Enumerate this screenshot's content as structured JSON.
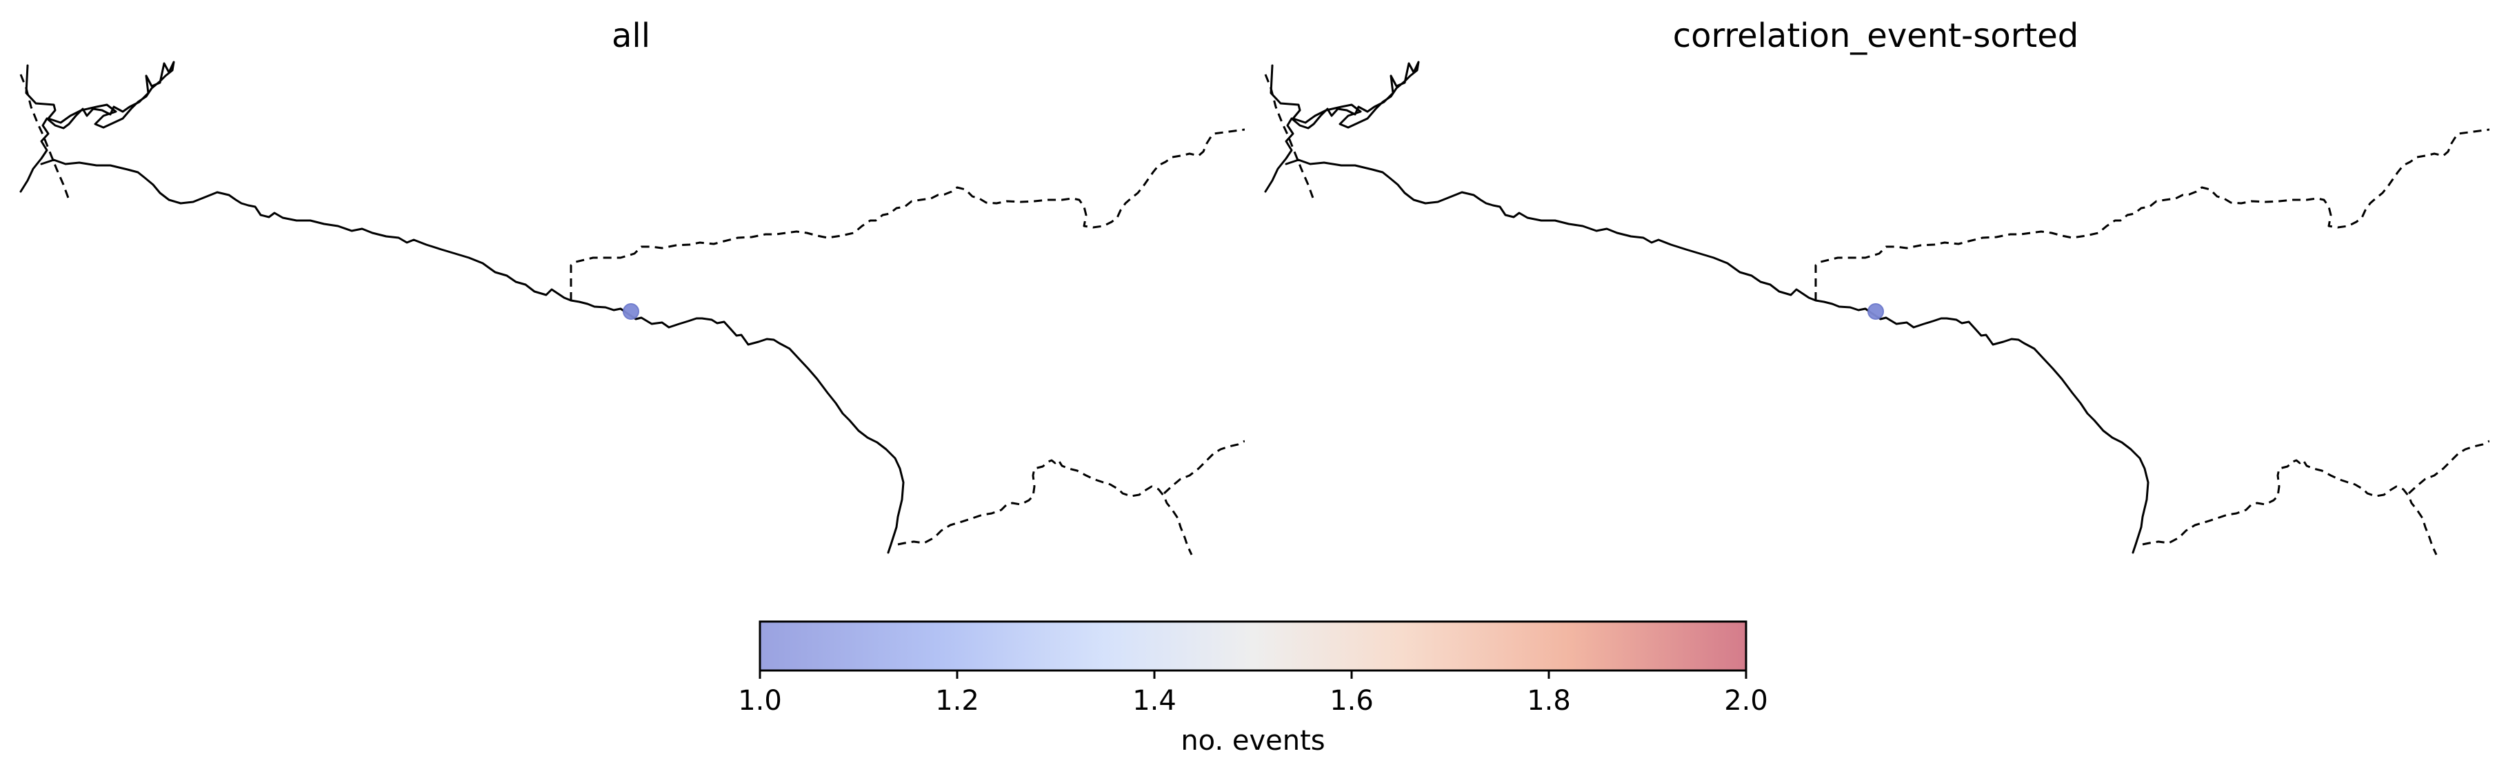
{
  "panels": [
    {
      "title": "all",
      "events": [
        {
          "count": 1.0
        }
      ]
    },
    {
      "title": "correlation_event-sorted",
      "events": [
        {
          "count": 1.0
        }
      ]
    }
  ],
  "colorbar": {
    "label": "no. events",
    "min": 1.0,
    "max": 2.0,
    "ticks": [
      "1.0",
      "1.2",
      "1.4",
      "1.6",
      "1.8",
      "2.0"
    ],
    "colormap": "coolwarm",
    "colors": {
      "low": "#3b4cc0",
      "mid": "#dddddd",
      "high": "#b40426"
    }
  }
}
